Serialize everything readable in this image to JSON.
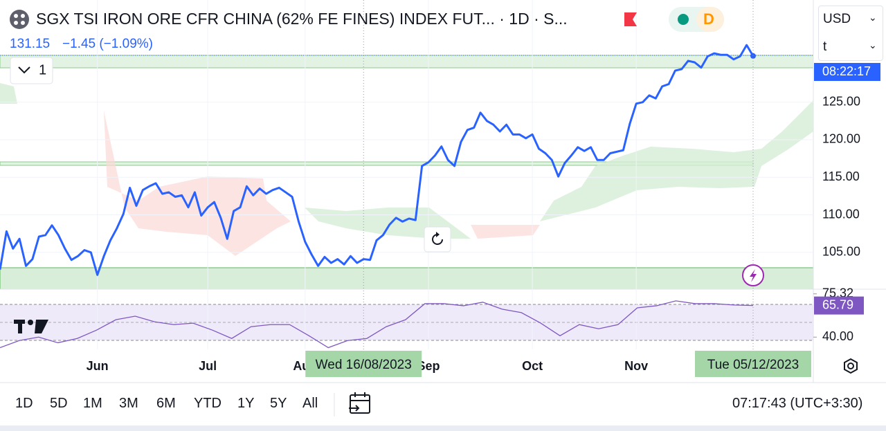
{
  "header": {
    "title": "SGX TSI IRON ORE CFR CHINA (62% FE FINES) INDEX FUT... · 1D · S...",
    "change": "−1.45 (−1.09%)",
    "legend_toggle": "1",
    "badge": "D"
  },
  "controls": {
    "currency": "USD",
    "unit": "t"
  },
  "chart_data": {
    "type": "line",
    "color": "#2962ff",
    "values": [
      102.7,
      107.8,
      105.5,
      106.8,
      103.2,
      104.1,
      107.1,
      107.3,
      108.6,
      107.3,
      105.5,
      104.0,
      104.5,
      105.3,
      105.0,
      102.0,
      104.5,
      106.6,
      108.2,
      110.1,
      113.6,
      111.2,
      113.3,
      113.8,
      114.2,
      112.8,
      113.0,
      112.4,
      112.6,
      111.0,
      113.0,
      109.9,
      111.0,
      111.7,
      109.6,
      106.8,
      110.5,
      111.0,
      113.8,
      112.6,
      113.5,
      112.8,
      113.3,
      113.6,
      113.0,
      112.4,
      109.1,
      106.4,
      104.7,
      103.2,
      104.4,
      103.6,
      104.1,
      103.4,
      104.5,
      103.6,
      104.1,
      104.0,
      106.6,
      107.3,
      108.7,
      109.6,
      109.1,
      109.5,
      109.3,
      116.5,
      117.0,
      117.9,
      119.1,
      117.3,
      116.5,
      119.7,
      121.3,
      121.6,
      123.6,
      122.5,
      122.0,
      121.1,
      122.0,
      120.7,
      120.7,
      120.2,
      120.7,
      118.8,
      118.2,
      117.3,
      115.1,
      116.9,
      117.9,
      119.0,
      118.5,
      119.0,
      117.3,
      117.3,
      118.2,
      118.4,
      118.6,
      122.1,
      124.8,
      125.0,
      125.9,
      125.5,
      127.1,
      127.4,
      129.2,
      129.4,
      130.5,
      130.3,
      129.6,
      131.1,
      131.5,
      131.3,
      131.3,
      130.7,
      131.1,
      132.6,
      131.15
    ],
    "ylim": [
      100.1,
      138.6
    ],
    "yticks": [
      {
        "value": 105,
        "label": "105.00"
      },
      {
        "value": 110,
        "label": "110.00"
      },
      {
        "value": 115,
        "label": "115.00"
      },
      {
        "value": 120,
        "label": "120.00"
      },
      {
        "value": 125,
        "label": "125.00"
      }
    ],
    "xticks": [
      {
        "value": 15,
        "label": "Jun"
      },
      {
        "value": 32,
        "label": "Jul"
      },
      {
        "value": 47,
        "label": "Aug"
      },
      {
        "value": 66,
        "label": "Sep"
      },
      {
        "value": 82,
        "label": "Oct"
      },
      {
        "value": 98,
        "label": "Nov"
      }
    ],
    "crosshair": [
      {
        "value": 56,
        "label": "Wed 16/08/2023"
      },
      {
        "value": 116,
        "label": "Tue 05/12/2023"
      }
    ],
    "countdown": "08:22:17"
  },
  "rsi": {
    "color": "#7e57c2",
    "values": [
      31.4,
      37.2,
      40.0,
      35.4,
      38.9,
      45.7,
      54.2,
      57.1,
      52.5,
      50.2,
      51.4,
      45.7,
      38.9,
      48.5,
      50.2,
      50.2,
      41.1,
      31.4,
      37.2,
      38.9,
      48.5,
      54.2,
      67.3,
      67.3,
      65.6,
      68.5,
      62.8,
      60.0,
      51.4,
      41.1,
      50.2,
      46.8,
      50.2,
      63.9,
      65.6,
      69.6,
      67.3,
      67.3,
      66.2,
      65.79
    ],
    "ylim": [
      30,
      78
    ],
    "yticks": [
      {
        "value": 40,
        "label": "40.00"
      },
      {
        "value": 75.32,
        "label": "75.32"
      }
    ]
  },
  "toolbar": {
    "ranges": [
      "1D",
      "5D",
      "1M",
      "3M",
      "6M",
      "YTD",
      "1Y",
      "5Y",
      "All"
    ],
    "clock": "07:17:43 (UTC+3:30)"
  }
}
